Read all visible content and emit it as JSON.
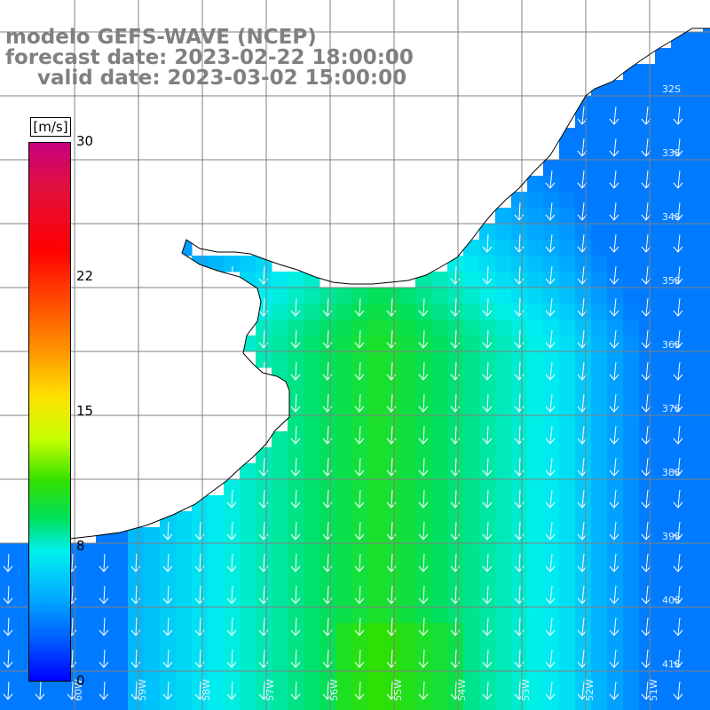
{
  "title": {
    "line1": "modelo GEFS-WAVE (NCEP)",
    "line2": "forecast date: 2023-02-22 18:00:00",
    "line3": "valid date: 2023-03-02 15:00:00"
  },
  "colorbar": {
    "unit": "[m/s]",
    "ticks": [
      "30",
      "22",
      "15",
      "8",
      "0"
    ],
    "range": [
      0,
      30
    ]
  },
  "lat_labels": [
    "32S",
    "33S",
    "34S",
    "35S",
    "36S",
    "37S",
    "38S",
    "39S",
    "40S",
    "41S"
  ],
  "lon_labels": [
    "60W",
    "59W",
    "58W",
    "57W",
    "56W",
    "55W",
    "54W",
    "53W",
    "52W",
    "51W"
  ],
  "colors": {
    "land": "#ffffff",
    "grid": "#808080",
    "coast": "#000000",
    "arrow": "#ffffff"
  }
}
